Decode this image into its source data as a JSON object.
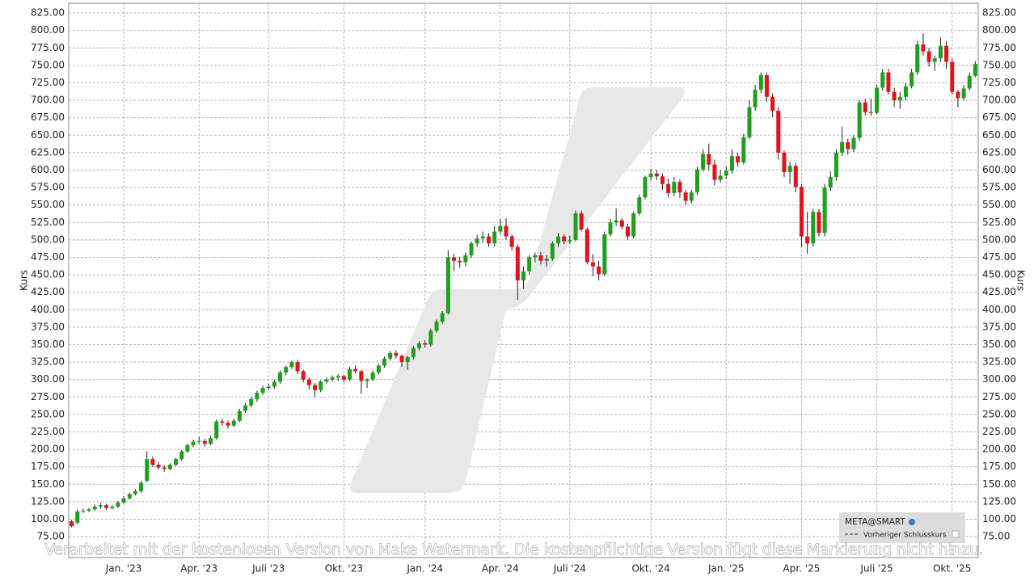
{
  "chart_data": {
    "type": "candlestick",
    "y_label": "Kurs",
    "watermark": "Verarbeitet mit der kostenlosen Version von Make Watermark. Die kostenpflichtige Version fügt diese Markierung nicht hinzu.",
    "legend_extra": "Vorheriger Schlusskurs",
    "up_color": "#1f9e1f",
    "down_color": "#e0141c",
    "grid": true,
    "ylim": [
      45,
      839
    ],
    "yticks": [
      {
        "value": 75,
        "label": "75.00"
      },
      {
        "value": 100,
        "label": "100.00"
      },
      {
        "value": 125,
        "label": "125.00"
      },
      {
        "value": 150,
        "label": "150.00"
      },
      {
        "value": 175,
        "label": "175.00"
      },
      {
        "value": 200,
        "label": "200.00"
      },
      {
        "value": 225,
        "label": "225.00"
      },
      {
        "value": 250,
        "label": "250.00"
      },
      {
        "value": 275,
        "label": "275.00"
      },
      {
        "value": 300,
        "label": "300.00"
      },
      {
        "value": 325,
        "label": "325.00"
      },
      {
        "value": 350,
        "label": "350.00"
      },
      {
        "value": 375,
        "label": "375.00"
      },
      {
        "value": 400,
        "label": "400.00"
      },
      {
        "value": 425,
        "label": "425.00"
      },
      {
        "value": 450,
        "label": "450.00"
      },
      {
        "value": 475,
        "label": "475.00"
      },
      {
        "value": 500,
        "label": "500.00"
      },
      {
        "value": 525,
        "label": "525.00"
      },
      {
        "value": 550,
        "label": "550.00"
      },
      {
        "value": 575,
        "label": "575.00"
      },
      {
        "value": 600,
        "label": "600.00"
      },
      {
        "value": 625,
        "label": "625.00"
      },
      {
        "value": 650,
        "label": "650.00"
      },
      {
        "value": 675,
        "label": "675.00"
      },
      {
        "value": 700,
        "label": "700.00"
      },
      {
        "value": 725,
        "label": "725.00"
      },
      {
        "value": 750,
        "label": "750.00"
      },
      {
        "value": 775,
        "label": "775.00"
      },
      {
        "value": 800,
        "label": "800.00"
      },
      {
        "value": 825,
        "label": "825.00"
      }
    ],
    "categories": [
      null,
      null,
      null,
      null,
      null,
      null,
      null,
      null,
      null,
      "Jan. '23",
      null,
      null,
      null,
      null,
      null,
      null,
      null,
      null,
      null,
      null,
      null,
      null,
      "Apr. '23",
      null,
      null,
      null,
      null,
      null,
      null,
      null,
      null,
      null,
      null,
      null,
      "Juli '23",
      null,
      null,
      null,
      null,
      null,
      null,
      null,
      null,
      null,
      null,
      null,
      null,
      "Okt. '23",
      null,
      null,
      null,
      null,
      null,
      null,
      null,
      null,
      null,
      null,
      null,
      null,
      null,
      "Jan. '24",
      null,
      null,
      null,
      null,
      null,
      null,
      null,
      null,
      null,
      null,
      null,
      null,
      "Apr. '24",
      null,
      null,
      null,
      null,
      null,
      null,
      null,
      null,
      null,
      null,
      null,
      "Juli '24",
      null,
      null,
      null,
      null,
      null,
      null,
      null,
      null,
      null,
      null,
      null,
      null,
      null,
      "Okt. '24",
      null,
      null,
      null,
      null,
      null,
      null,
      null,
      null,
      null,
      null,
      null,
      null,
      "Jan. '25",
      null,
      null,
      null,
      null,
      null,
      null,
      null,
      null,
      null,
      null,
      null,
      null,
      "Apr. '25",
      null,
      null,
      null,
      null,
      null,
      null,
      null,
      null,
      null,
      null,
      null,
      null,
      "Juli '25",
      null,
      null,
      null,
      null,
      null,
      null,
      null,
      null,
      null,
      null,
      null,
      null,
      "Okt. '25",
      null,
      null,
      null,
      null
    ],
    "series": [
      {
        "name": "META@SMART",
        "open": [
          97,
          95,
          111,
          112,
          114,
          118,
          120,
          116,
          118,
          124,
          130,
          136,
          140,
          155,
          186,
          178,
          174,
          172,
          178,
          186,
          197,
          206,
          211,
          212,
          208,
          216,
          240,
          238,
          234,
          241,
          255,
          263,
          272,
          281,
          288,
          290,
          297,
          310,
          318,
          325,
          312,
          300,
          292,
          285,
          297,
          300,
          303,
          305,
          300,
          315,
          312,
          298,
          300,
          310,
          320,
          330,
          338,
          334,
          325,
          332,
          345,
          352,
          350,
          370,
          383,
          395,
          475,
          470,
          468,
          478,
          495,
          502,
          505,
          495,
          512,
          520,
          505,
          490,
          442,
          455,
          475,
          478,
          470,
          473,
          495,
          505,
          498,
          500,
          538,
          515,
          468,
          462,
          451,
          508,
          525,
          528,
          519,
          505,
          538,
          561,
          590,
          595,
          591,
          580,
          567,
          583,
          568,
          556,
          568,
          601,
          623,
          608,
          586,
          592,
          599,
          620,
          611,
          647,
          690,
          715,
          736,
          705,
          685,
          625,
          597,
          606,
          576,
          505,
          495,
          540,
          510,
          575,
          590,
          625,
          640,
          630,
          646,
          697,
          683,
          682,
          718,
          740,
          712,
          700,
          705,
          720,
          740,
          780,
          770,
          755,
          760,
          778,
          755,
          712,
          703,
          717,
          735
        ],
        "high": [
          99,
          114,
          115,
          116,
          121,
          123,
          122,
          120,
          126,
          133,
          138,
          143,
          155,
          197,
          190,
          182,
          177,
          180,
          188,
          199,
          208,
          214,
          218,
          215,
          219,
          243,
          244,
          241,
          244,
          258,
          266,
          275,
          284,
          291,
          294,
          300,
          313,
          320,
          327,
          328,
          314,
          303,
          295,
          299,
          303,
          306,
          308,
          307,
          318,
          320,
          314,
          302,
          313,
          323,
          333,
          341,
          342,
          336,
          334,
          348,
          355,
          356,
          373,
          386,
          398,
          485,
          480,
          476,
          482,
          498,
          507,
          512,
          510,
          520,
          530,
          531,
          508,
          493,
          462,
          478,
          482,
          483,
          478,
          498,
          510,
          508,
          506,
          542,
          542,
          518,
          480,
          470,
          512,
          530,
          545,
          531,
          523,
          541,
          565,
          592,
          602,
          600,
          595,
          588,
          590,
          587,
          572,
          572,
          605,
          630,
          638,
          615,
          600,
          605,
          630,
          625,
          652,
          700,
          722,
          740,
          740,
          710,
          690,
          628,
          612,
          610,
          580,
          540,
          545,
          544,
          580,
          598,
          630,
          662,
          645,
          650,
          700,
          702,
          702,
          722,
          745,
          745,
          718,
          712,
          725,
          745,
          785,
          796,
          775,
          764,
          790,
          785,
          760,
          715,
          722,
          740,
          756
        ],
        "low": [
          88,
          93,
          109,
          110,
          112,
          115,
          113,
          114,
          116,
          122,
          128,
          134,
          138,
          153,
          175,
          171,
          168,
          170,
          176,
          184,
          195,
          203,
          208,
          204,
          206,
          214,
          234,
          230,
          232,
          239,
          252,
          260,
          268,
          278,
          285,
          287,
          294,
          306,
          315,
          308,
          296,
          286,
          275,
          282,
          294,
          297,
          298,
          296,
          298,
          309,
          280,
          288,
          298,
          307,
          317,
          327,
          330,
          318,
          314,
          329,
          342,
          346,
          347,
          367,
          380,
          393,
          455,
          460,
          462,
          474,
          490,
          496,
          490,
          490,
          508,
          500,
          485,
          414,
          430,
          450,
          468,
          465,
          462,
          470,
          490,
          494,
          494,
          498,
          512,
          465,
          448,
          442,
          448,
          505,
          520,
          515,
          500,
          502,
          535,
          558,
          585,
          586,
          572,
          561,
          563,
          560,
          550,
          552,
          564,
          598,
          600,
          578,
          582,
          587,
          595,
          605,
          608,
          644,
          685,
          710,
          698,
          676,
          615,
          590,
          580,
          568,
          490,
          480,
          490,
          505,
          505,
          570,
          585,
          620,
          622,
          626,
          642,
          678,
          678,
          680,
          714,
          708,
          690,
          688,
          700,
          717,
          736,
          764,
          748,
          742,
          755,
          745,
          708,
          690,
          700,
          714,
          733
        ],
        "close": [
          90,
          111,
          112,
          114,
          118,
          120,
          116,
          118,
          124,
          130,
          136,
          140,
          152,
          186,
          178,
          174,
          172,
          178,
          186,
          197,
          206,
          211,
          212,
          208,
          216,
          240,
          238,
          234,
          241,
          255,
          263,
          272,
          281,
          288,
          290,
          297,
          310,
          318,
          325,
          312,
          300,
          292,
          285,
          297,
          300,
          303,
          305,
          300,
          315,
          312,
          298,
          300,
          310,
          320,
          330,
          338,
          334,
          325,
          332,
          345,
          352,
          350,
          370,
          383,
          395,
          475,
          470,
          468,
          478,
          495,
          502,
          505,
          495,
          512,
          520,
          505,
          490,
          442,
          455,
          475,
          478,
          470,
          473,
          495,
          505,
          498,
          500,
          538,
          515,
          468,
          462,
          451,
          508,
          525,
          528,
          519,
          505,
          538,
          561,
          590,
          595,
          591,
          580,
          567,
          583,
          568,
          556,
          568,
          601,
          623,
          608,
          586,
          592,
          599,
          620,
          611,
          647,
          690,
          715,
          736,
          705,
          685,
          625,
          597,
          606,
          576,
          505,
          495,
          540,
          510,
          575,
          590,
          625,
          640,
          630,
          646,
          697,
          683,
          682,
          718,
          740,
          712,
          700,
          705,
          720,
          740,
          780,
          770,
          755,
          760,
          778,
          755,
          712,
          703,
          717,
          735,
          752
        ]
      }
    ]
  }
}
